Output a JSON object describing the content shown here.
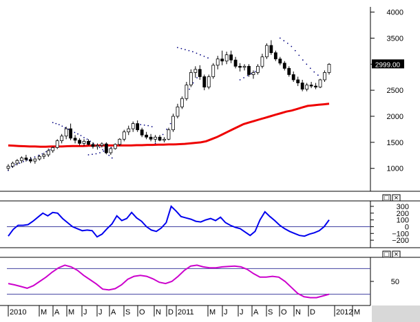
{
  "chart_data": [
    {
      "type": "candlestick",
      "ylim": [
        600,
        4100
      ],
      "yticks": [
        1000,
        1500,
        2000,
        2500,
        3000,
        3500,
        4000
      ],
      "last_value_label": "2999.00",
      "last_value": 2999,
      "colors": {
        "moving_average": "#ee0000",
        "sar": "#000080",
        "candle": "#000000"
      },
      "candles": [
        [
          1000,
          1080,
          960,
          1040
        ],
        [
          1040,
          1130,
          1010,
          1100
        ],
        [
          1100,
          1180,
          1060,
          1150
        ],
        [
          1150,
          1230,
          1100,
          1200
        ],
        [
          1200,
          1260,
          1130,
          1170
        ],
        [
          1170,
          1220,
          1100,
          1140
        ],
        [
          1140,
          1200,
          1090,
          1180
        ],
        [
          1180,
          1260,
          1150,
          1230
        ],
        [
          1230,
          1300,
          1180,
          1260
        ],
        [
          1260,
          1380,
          1220,
          1340
        ],
        [
          1340,
          1420,
          1300,
          1400
        ],
        [
          1400,
          1560,
          1370,
          1530
        ],
        [
          1530,
          1660,
          1480,
          1620
        ],
        [
          1620,
          1800,
          1560,
          1760
        ],
        [
          1760,
          1860,
          1540,
          1580
        ],
        [
          1580,
          1640,
          1480,
          1540
        ],
        [
          1540,
          1580,
          1440,
          1480
        ],
        [
          1480,
          1560,
          1430,
          1520
        ],
        [
          1520,
          1560,
          1440,
          1460
        ],
        [
          1460,
          1500,
          1380,
          1420
        ],
        [
          1420,
          1480,
          1360,
          1440
        ],
        [
          1440,
          1500,
          1400,
          1470
        ],
        [
          1470,
          1500,
          1270,
          1300
        ],
        [
          1300,
          1400,
          1260,
          1380
        ],
        [
          1380,
          1480,
          1360,
          1460
        ],
        [
          1460,
          1580,
          1430,
          1560
        ],
        [
          1560,
          1740,
          1520,
          1700
        ],
        [
          1700,
          1820,
          1640,
          1760
        ],
        [
          1760,
          1900,
          1700,
          1860
        ],
        [
          1860,
          1920,
          1700,
          1740
        ],
        [
          1740,
          1780,
          1600,
          1640
        ],
        [
          1640,
          1700,
          1560,
          1600
        ],
        [
          1600,
          1660,
          1520,
          1560
        ],
        [
          1560,
          1640,
          1500,
          1600
        ],
        [
          1600,
          1640,
          1520,
          1540
        ],
        [
          1540,
          1600,
          1500,
          1560
        ],
        [
          1560,
          1780,
          1540,
          1740
        ],
        [
          1740,
          2050,
          1700,
          2000
        ],
        [
          2000,
          2240,
          1960,
          2180
        ],
        [
          2180,
          2380,
          2140,
          2340
        ],
        [
          2340,
          2660,
          2300,
          2600
        ],
        [
          2600,
          2900,
          2560,
          2840
        ],
        [
          2840,
          2960,
          2740,
          2900
        ],
        [
          2900,
          2980,
          2700,
          2760
        ],
        [
          2760,
          2800,
          2500,
          2560
        ],
        [
          2560,
          2800,
          2520,
          2760
        ],
        [
          2760,
          3020,
          2720,
          2980
        ],
        [
          2980,
          3160,
          2900,
          3100
        ],
        [
          3100,
          3260,
          2980,
          3060
        ],
        [
          3060,
          3240,
          3000,
          3180
        ],
        [
          3180,
          3260,
          3020,
          3080
        ],
        [
          3080,
          3140,
          2920,
          2960
        ],
        [
          2960,
          3020,
          2860,
          2940
        ],
        [
          2940,
          3000,
          2880,
          2960
        ],
        [
          2960,
          3000,
          2760,
          2800
        ],
        [
          2800,
          2880,
          2720,
          2840
        ],
        [
          2840,
          3000,
          2800,
          2960
        ],
        [
          2960,
          3200,
          2920,
          3140
        ],
        [
          3140,
          3400,
          3100,
          3360
        ],
        [
          3360,
          3460,
          3180,
          3220
        ],
        [
          3220,
          3260,
          3060,
          3100
        ],
        [
          3100,
          3140,
          2980,
          3020
        ],
        [
          3020,
          3060,
          2880,
          2920
        ],
        [
          2920,
          2960,
          2760,
          2800
        ],
        [
          2800,
          2860,
          2660,
          2700
        ],
        [
          2700,
          2760,
          2580,
          2640
        ],
        [
          2640,
          2700,
          2480,
          2520
        ],
        [
          2520,
          2640,
          2480,
          2600
        ],
        [
          2600,
          2660,
          2540,
          2580
        ],
        [
          2580,
          2640,
          2520,
          2560
        ],
        [
          2560,
          2720,
          2540,
          2700
        ],
        [
          2700,
          2880,
          2660,
          2840
        ],
        [
          2840,
          3020,
          2800,
          2999
        ]
      ],
      "moving_average": [
        1440,
        1435,
        1430,
        1425,
        1420,
        1420,
        1415,
        1415,
        1420,
        1420,
        1420,
        1425,
        1430,
        1430,
        1430,
        1435,
        1435,
        1440,
        1440,
        1440,
        1440,
        1440,
        1440,
        1440,
        1445,
        1445,
        1450,
        1450,
        1455,
        1455,
        1460,
        1460,
        1465,
        1470,
        1480,
        1490,
        1500,
        1520,
        1560,
        1600,
        1650,
        1700,
        1750,
        1800,
        1850,
        1880,
        1910,
        1940,
        1970,
        2000,
        2030,
        2060,
        2090,
        2110,
        2140,
        2170,
        2200,
        2210,
        2220,
        2230,
        2240
      ],
      "sar": [
        [
          960,
          1030,
          1070,
          1100,
          1130,
          1160,
          1190,
          1220,
          1250,
          1280,
          1320,
          1360,
          1400
        ],
        [
          1880,
          1860,
          1840,
          1810,
          1780,
          1750,
          1720,
          1690,
          1660,
          1630,
          1590,
          1560,
          1520,
          1480,
          1440,
          1400,
          1360,
          1300,
          1250,
          1200
        ],
        [
          1260,
          1270,
          1280,
          1300,
          1330,
          1360,
          1400,
          1450,
          1500
        ],
        [
          1860,
          1850,
          1840,
          1830,
          1820,
          1800
        ],
        [
          1480,
          1560,
          1650,
          1750,
          1860,
          1980,
          2110,
          2250,
          2390,
          2520,
          2640,
          2740,
          2820
        ],
        [
          3320,
          3300,
          3280,
          3260,
          3240,
          3210,
          3180,
          3150,
          3120
        ],
        [
          2700,
          2740,
          2780,
          2820,
          2860,
          2900
        ],
        [
          3500,
          3450,
          3400,
          3340,
          3260,
          3170,
          3080,
          3000,
          2920,
          2850,
          2790
        ]
      ]
    },
    {
      "type": "line",
      "ylim": [
        -270,
        340
      ],
      "yticks": [
        300,
        200,
        100,
        0,
        -100,
        -200
      ],
      "ytick_labels": [
        "300",
        "200",
        "100",
        "0",
        "−100",
        "−200"
      ],
      "reference_lines": [
        0
      ],
      "series": [
        {
          "color": "#0000ee",
          "values": [
            -140,
            -40,
            20,
            20,
            30,
            80,
            140,
            200,
            160,
            210,
            200,
            120,
            60,
            0,
            -30,
            -60,
            -50,
            -60,
            -150,
            -110,
            -30,
            40,
            160,
            90,
            120,
            210,
            130,
            80,
            0,
            -50,
            -70,
            -20,
            60,
            300,
            230,
            150,
            130,
            110,
            80,
            70,
            100,
            120,
            90,
            140,
            60,
            20,
            -10,
            -30,
            -80,
            -130,
            -70,
            100,
            220,
            150,
            90,
            20,
            -30,
            -70,
            -100,
            -130,
            -140,
            -110,
            -90,
            -60,
            0,
            100
          ]
        }
      ],
      "colors": {
        "reference_line": "#4040a0"
      }
    },
    {
      "type": "line",
      "ylim": [
        0,
        100
      ],
      "yticks": [
        50
      ],
      "reference_lines": [
        80,
        20
      ],
      "series": [
        {
          "color": "#cc00cc",
          "values": [
            45,
            42,
            38,
            34,
            40,
            50,
            60,
            72,
            82,
            88,
            84,
            76,
            64,
            54,
            44,
            32,
            30,
            33,
            42,
            55,
            62,
            64,
            62,
            56,
            48,
            45,
            50,
            62,
            76,
            86,
            88,
            84,
            82,
            82,
            84,
            85,
            86,
            84,
            78,
            68,
            60,
            60,
            62,
            60,
            50,
            36,
            22,
            14,
            12,
            12,
            16,
            20
          ]
        }
      ],
      "colors": {
        "reference_line": "#4040a0"
      }
    }
  ],
  "x_axis": {
    "labels": [
      "2010",
      "M",
      "A",
      "M",
      "J",
      "J",
      "A",
      "S",
      "O",
      "N",
      "D",
      "2011",
      "M",
      "J",
      "J",
      "A",
      "S",
      "O",
      "N",
      "D",
      "2012",
      "M"
    ]
  },
  "panel_buttons": [
    {
      "name": "restore",
      "glyph": "□"
    },
    {
      "name": "close",
      "glyph": "×"
    }
  ]
}
